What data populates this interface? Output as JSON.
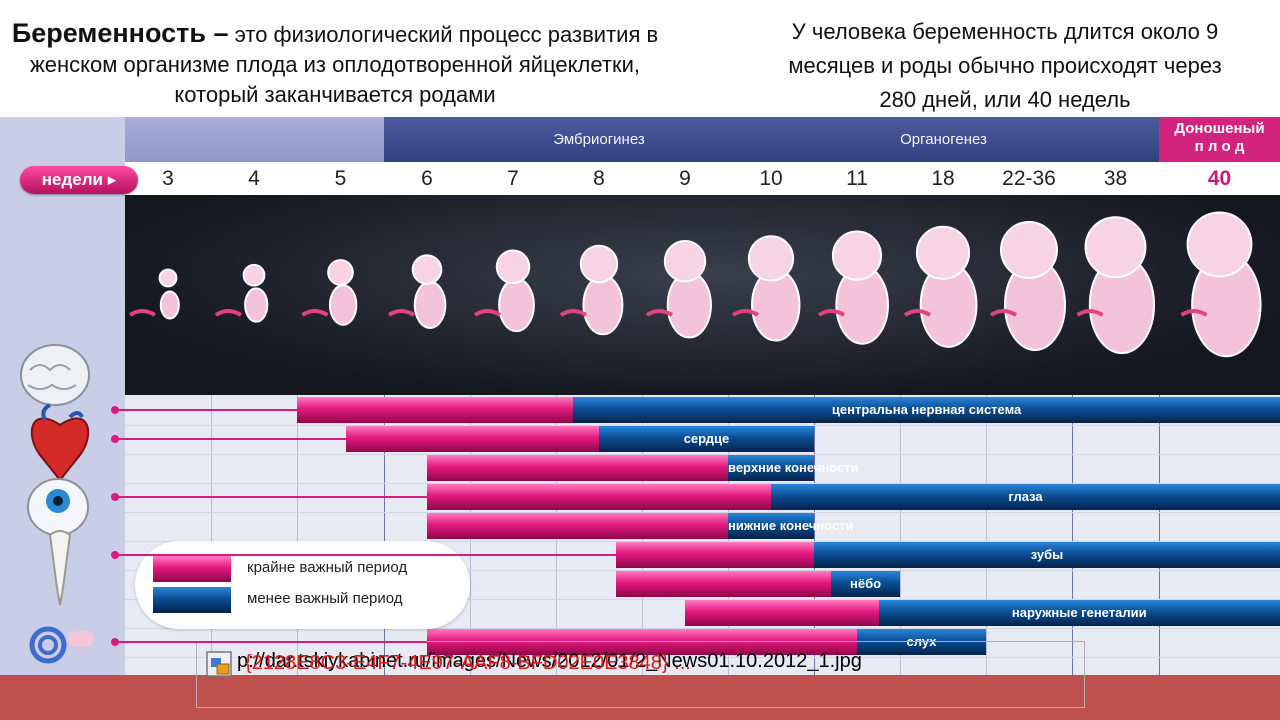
{
  "intro_left": {
    "term": "Беременность –",
    "rest": "это физиологический процесс развития в женском организме плода из оплодотворенной яйцеклетки, который заканчивается родами"
  },
  "intro_right": "У человека беременность длится около 9 месяцев и роды обычно происходят через 280 дней, или 40 недель",
  "stages": {
    "embryogenesis": "Эмбриогинез",
    "organogenesis": "Органогенез",
    "term_line1": "Доношеный",
    "term_line2": "п л о д"
  },
  "weeks_label": "недели ▸",
  "weeks": [
    "3",
    "4",
    "5",
    "6",
    "7",
    "8",
    "9",
    "10",
    "11",
    "18",
    "22-36",
    "38",
    "40"
  ],
  "organs": [
    {
      "label": "центральна нервная система",
      "start_col": 2,
      "switch_col": 5.2,
      "end_col": 13
    },
    {
      "label": "сердце",
      "start_col": 2.56,
      "switch_col": 5.5,
      "end_col": 8
    },
    {
      "label": "верхние конечности",
      "start_col": 3.5,
      "switch_col": 7,
      "end_col": 8
    },
    {
      "label": "глаза",
      "start_col": 3.5,
      "switch_col": 7.5,
      "end_col": 13
    },
    {
      "label": "нижние конечности",
      "start_col": 3.5,
      "switch_col": 7,
      "end_col": 8
    },
    {
      "label": "зубы",
      "start_col": 5.7,
      "switch_col": 8,
      "end_col": 13
    },
    {
      "label": "нёбо",
      "start_col": 5.7,
      "switch_col": 8.2,
      "end_col": 9
    },
    {
      "label": "наружные генеталии",
      "start_col": 6.5,
      "switch_col": 8.75,
      "end_col": 13
    },
    {
      "label": "слух",
      "start_col": 3.5,
      "switch_col": 8.5,
      "end_col": 10
    }
  ],
  "legend": {
    "critical": "крайне важный период",
    "less_important": "менее важный период"
  },
  "broken_image": {
    "url_text": "p://dar.tskiykabinet.ru/images/News/2012/01/2_News01.10.2012_1.jpg",
    "guid_text": "{2128E8C3-E4F7-4E97-AAF8-BFD02E0E3848} ..."
  },
  "colors": {
    "important": "#e3187f",
    "less_important": "#0b4f96",
    "accent": "#d2237f",
    "footer": "#c0504d"
  }
}
